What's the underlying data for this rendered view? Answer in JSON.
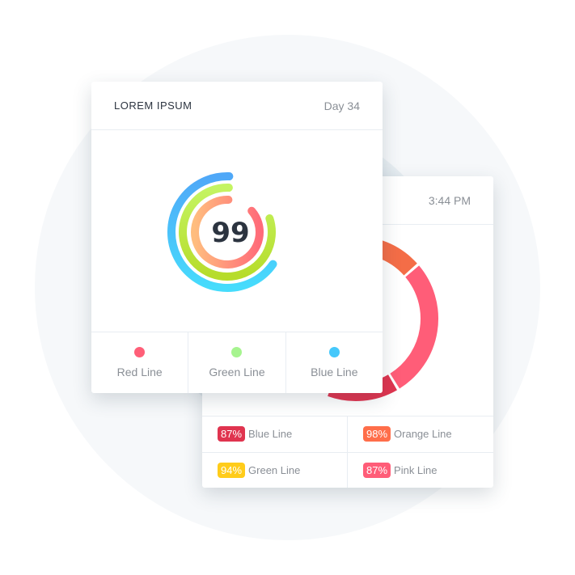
{
  "front_card": {
    "title": "LOREM IPSUM",
    "day": "Day 34",
    "score": "99",
    "rings": [
      {
        "name": "blue",
        "colors": [
          "#4fa8f8",
          "#46dcfc"
        ]
      },
      {
        "name": "green",
        "colors": [
          "#c4f462",
          "#b6dc2a"
        ]
      },
      {
        "name": "red",
        "colors": [
          "#ffbd7e",
          "#ff6b79"
        ]
      }
    ],
    "legend": [
      {
        "label": "Red Line",
        "color": "#ff5f78"
      },
      {
        "label": "Green Line",
        "color": "#a6f48f"
      },
      {
        "label": "Blue Line",
        "color": "#45c8fb"
      }
    ]
  },
  "back_card": {
    "time": "3:44 PM",
    "donut_colors": [
      "#f46d47",
      "#ff5d78",
      "#e0344f"
    ],
    "stats": [
      {
        "value": "87%",
        "label": "Blue Line",
        "color": "#e0344f"
      },
      {
        "value": "98%",
        "label": "Orange Line",
        "color": "#ff6e4a"
      },
      {
        "value": "94%",
        "label": "Green Line",
        "color": "#ffcc1a"
      },
      {
        "value": "87%",
        "label": "Pink Line",
        "color": "#ff5d78"
      }
    ]
  }
}
